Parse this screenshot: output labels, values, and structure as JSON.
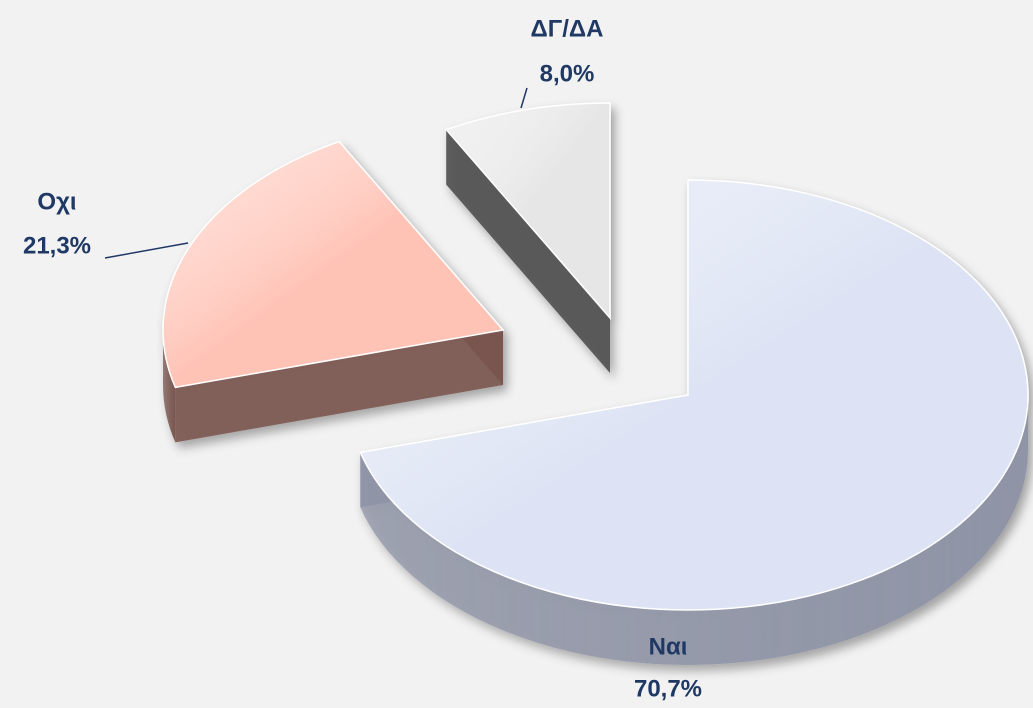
{
  "chart_data": {
    "type": "pie",
    "categories": [
      "Ναι",
      "Οχι",
      "ΔΓ/ΔΑ"
    ],
    "values": [
      70.7,
      21.3,
      8.0
    ],
    "value_labels": [
      "70,7%",
      "21,3%",
      "8,0%"
    ],
    "colors": [
      "#dde3f4",
      "#ffc3b6",
      "#e6e6e6"
    ],
    "side_colors": [
      "#8f94a6",
      "#7a5650",
      "#505050"
    ]
  }
}
